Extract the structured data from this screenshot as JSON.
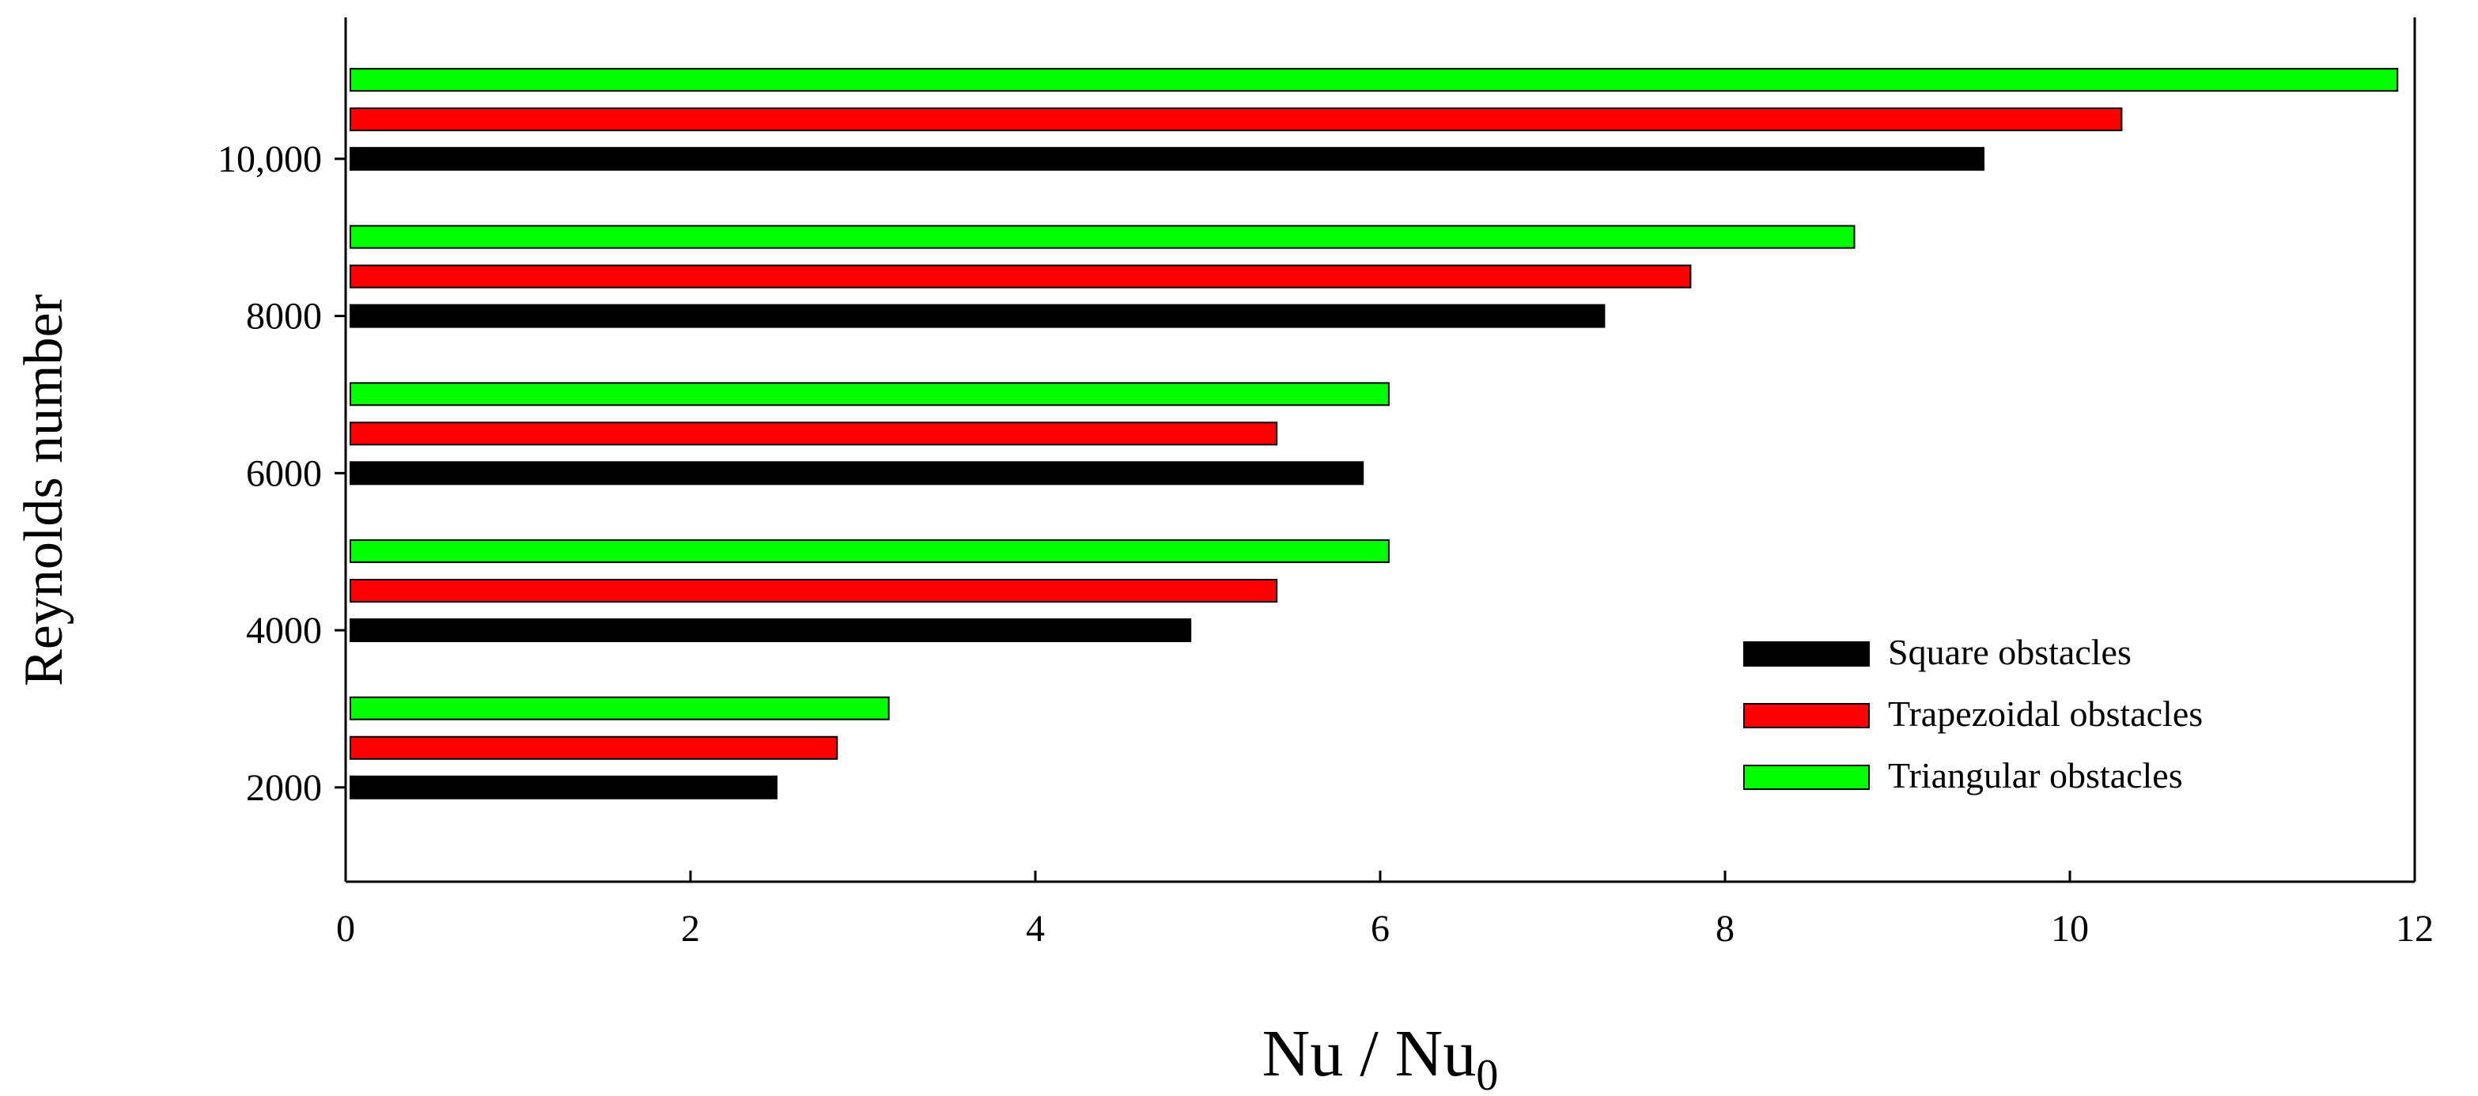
{
  "chart_data": {
    "type": "bar",
    "orientation": "horizontal",
    "title": "",
    "xlabel": "Nu / Nu",
    "xlabel_subscript": "0",
    "ylabel": "Reynolds number",
    "categories": [
      "2000",
      "4000",
      "6000",
      "8000",
      "10,000"
    ],
    "xlim": [
      0,
      12
    ],
    "xticks": [
      "0",
      "2",
      "4",
      "6",
      "8",
      "10",
      "12"
    ],
    "ylim": [
      800,
      11800
    ],
    "yticks": [
      {
        "value": 2000,
        "label": "2000"
      },
      {
        "value": 4000,
        "label": "4000"
      },
      {
        "value": 6000,
        "label": "6000"
      },
      {
        "value": 8000,
        "label": "8000"
      },
      {
        "value": 10000,
        "label": "10,000"
      }
    ],
    "grid": false,
    "legend_position": "bottom-right",
    "series": [
      {
        "name": "Square obstacles",
        "color": "#000000",
        "values": [
          2.5,
          4.9,
          5.9,
          7.3,
          9.5
        ]
      },
      {
        "name": "Trapezoidal obstacles",
        "color": "#ff0000",
        "values": [
          2.85,
          5.4,
          5.4,
          7.8,
          10.3
        ]
      },
      {
        "name": "Triangular obstacles",
        "color": "#00ff00",
        "values": [
          3.15,
          6.05,
          6.05,
          8.75,
          11.9
        ]
      }
    ]
  }
}
